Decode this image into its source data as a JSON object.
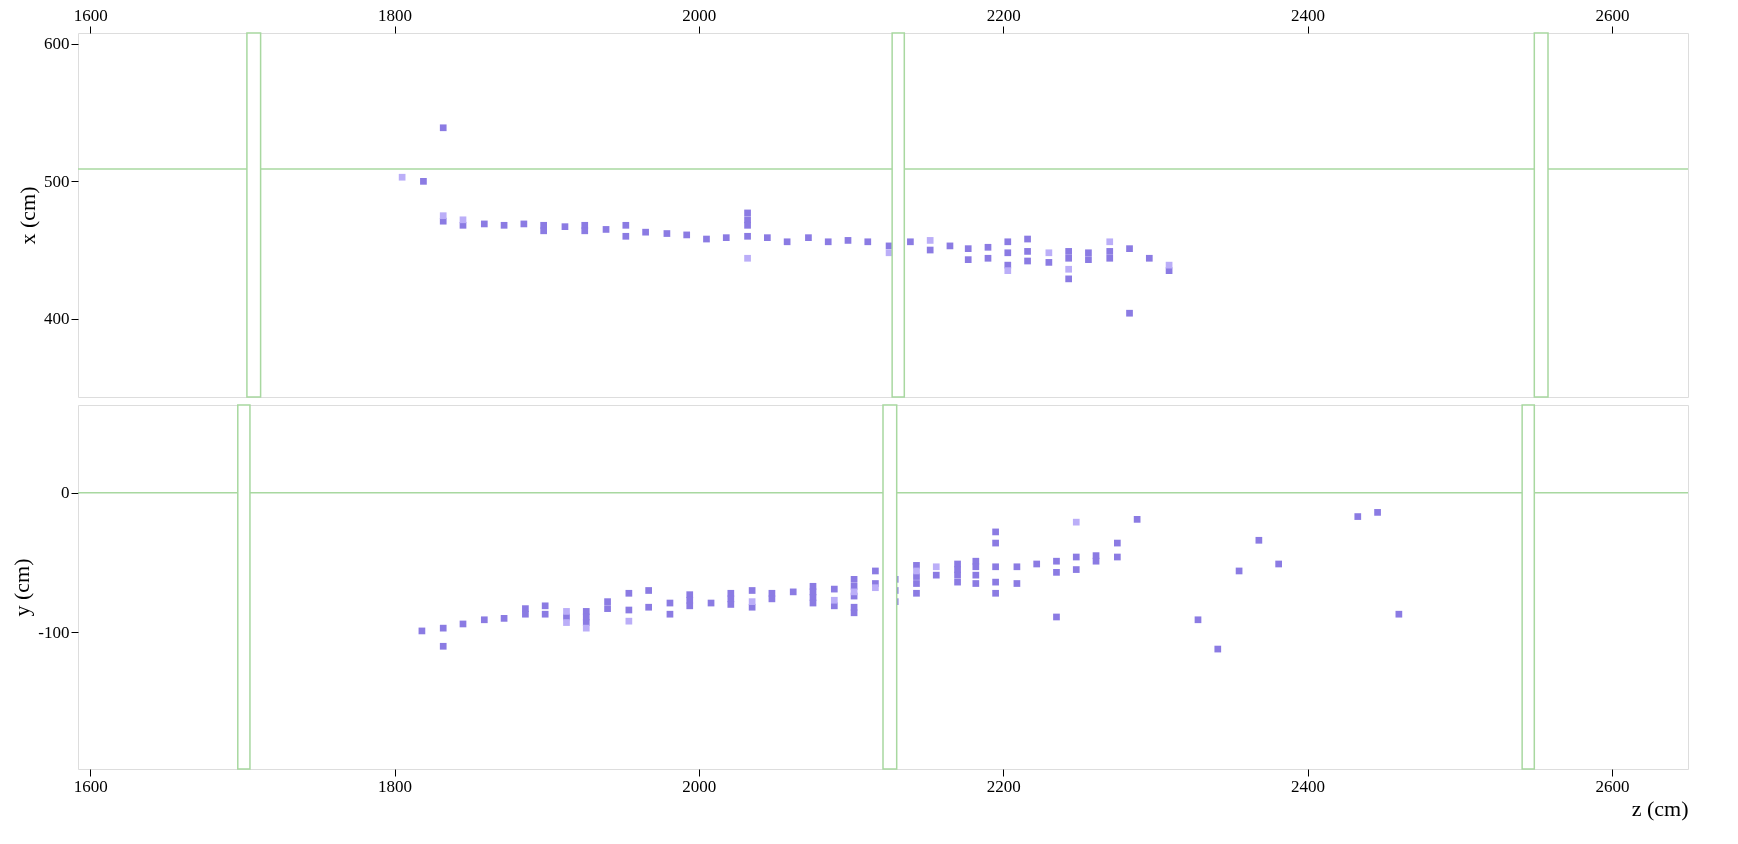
{
  "chart_data": [
    {
      "type": "scatter",
      "ylabel": "x (cm)",
      "marker": "square",
      "xlim": [
        1592,
        2650
      ],
      "xticks": [
        1600,
        1800,
        2000,
        2200,
        2400,
        2600
      ],
      "ylim": [
        343,
        608
      ],
      "yticks": [
        400,
        500,
        600
      ],
      "series": [
        {
          "color": "#8b7be3",
          "x": [
            1819,
            1832,
            1832,
            1845,
            1859,
            1872,
            1885,
            1898,
            1898,
            1912,
            1925,
            1925,
            1939,
            1952,
            1952,
            1965,
            1979,
            1992,
            2005,
            2018,
            2032,
            2032,
            2032,
            2032,
            2045,
            2058,
            2072,
            2085,
            2098,
            2111,
            2125,
            2139,
            2152,
            2165,
            2177,
            2177,
            2190,
            2190,
            2203,
            2203,
            2203,
            2216,
            2216,
            2216,
            2230,
            2243,
            2243,
            2243,
            2256,
            2256,
            2270,
            2270,
            2283,
            2283,
            2296,
            2309
          ],
          "values": [
            500,
            539,
            471,
            468,
            469,
            468,
            469,
            468,
            464,
            467,
            468,
            464,
            465,
            468,
            460,
            463,
            462,
            461,
            458,
            459,
            477,
            472,
            468,
            460,
            459,
            456,
            459,
            456,
            457,
            456,
            453,
            456,
            450,
            453,
            451,
            443,
            452,
            444,
            456,
            448,
            439,
            458,
            449,
            442,
            441,
            449,
            444,
            429,
            448,
            443,
            449,
            444,
            451,
            404,
            444,
            435
          ]
        },
        {
          "color": "#bbaef8",
          "x": [
            1805,
            1832,
            1845,
            2032,
            2125,
            2152,
            2203,
            2230,
            2243,
            2270,
            2309
          ],
          "values": [
            503,
            475,
            472,
            444,
            448,
            457,
            435,
            448,
            436,
            456,
            439
          ]
        }
      ],
      "ref_lines": [
        {
          "axis": "y",
          "value": 509,
          "color": "#a8d8a0"
        }
      ],
      "bands": [
        {
          "axis": "x",
          "from": 1703,
          "to": 1712,
          "color": "#a8d8a0"
        },
        {
          "axis": "x",
          "from": 2127,
          "to": 2135,
          "color": "#a8d8a0"
        },
        {
          "axis": "x",
          "from": 2549,
          "to": 2558,
          "color": "#a8d8a0"
        }
      ]
    },
    {
      "type": "scatter",
      "xlabel": "z (cm)",
      "ylabel": "y (cm)",
      "marker": "square",
      "xlim": [
        1592,
        2650
      ],
      "xticks": [
        1600,
        1800,
        2000,
        2200,
        2400,
        2600
      ],
      "ylim": [
        -198,
        63
      ],
      "yticks": [
        -100,
        0
      ],
      "series": [
        {
          "color": "#8b7be3",
          "x": [
            1818,
            1832,
            1832,
            1845,
            1859,
            1872,
            1886,
            1886,
            1899,
            1899,
            1913,
            1926,
            1926,
            1926,
            1940,
            1940,
            1954,
            1954,
            1967,
            1967,
            1981,
            1981,
            1994,
            1994,
            1994,
            2008,
            2021,
            2021,
            2021,
            2035,
            2035,
            2048,
            2048,
            2062,
            2075,
            2075,
            2075,
            2075,
            2089,
            2089,
            2102,
            2102,
            2102,
            2102,
            2102,
            2116,
            2116,
            2129,
            2129,
            2129,
            2143,
            2143,
            2143,
            2143,
            2156,
            2170,
            2170,
            2170,
            2170,
            2182,
            2182,
            2182,
            2182,
            2195,
            2195,
            2195,
            2195,
            2195,
            2209,
            2209,
            2222,
            2235,
            2235,
            2235,
            2248,
            2248,
            2261,
            2261,
            2275,
            2275,
            2288,
            2328,
            2341,
            2355,
            2368,
            2381,
            2433,
            2446,
            2460
          ],
          "values": [
            -99,
            -97,
            -110,
            -94,
            -91,
            -90,
            -83,
            -87,
            -81,
            -87,
            -89,
            -85,
            -89,
            -93,
            -78,
            -83,
            -72,
            -84,
            -70,
            -82,
            -79,
            -87,
            -73,
            -77,
            -81,
            -79,
            -72,
            -76,
            -80,
            -70,
            -82,
            -72,
            -76,
            -71,
            -67,
            -71,
            -75,
            -79,
            -69,
            -81,
            -62,
            -67,
            -74,
            -82,
            -86,
            -56,
            -65,
            -62,
            -70,
            -78,
            -52,
            -60,
            -65,
            -72,
            -59,
            -51,
            -55,
            -59,
            -64,
            -49,
            -53,
            -59,
            -65,
            -28,
            -36,
            -53,
            -64,
            -72,
            -53,
            -65,
            -51,
            -49,
            -57,
            -89,
            -46,
            -55,
            -45,
            -49,
            -36,
            -46,
            -19,
            -91,
            -112,
            -56,
            -34,
            -51,
            -17,
            -14,
            -87
          ]
        },
        {
          "color": "#bbaef8",
          "x": [
            1913,
            1913,
            1926,
            1954,
            2035,
            2089,
            2102,
            2116,
            2143,
            2156,
            2248
          ],
          "values": [
            -85,
            -93,
            -97,
            -92,
            -78,
            -77,
            -71,
            -68,
            -56,
            -53,
            -21
          ]
        }
      ],
      "ref_lines": [
        {
          "axis": "y",
          "value": 0,
          "color": "#a8d8a0"
        }
      ],
      "bands": [
        {
          "axis": "x",
          "from": 1697,
          "to": 1705,
          "color": "#a8d8a0"
        },
        {
          "axis": "x",
          "from": 2121,
          "to": 2130,
          "color": "#a8d8a0"
        },
        {
          "axis": "x",
          "from": 2541,
          "to": 2549,
          "color": "#a8d8a0"
        }
      ]
    }
  ]
}
